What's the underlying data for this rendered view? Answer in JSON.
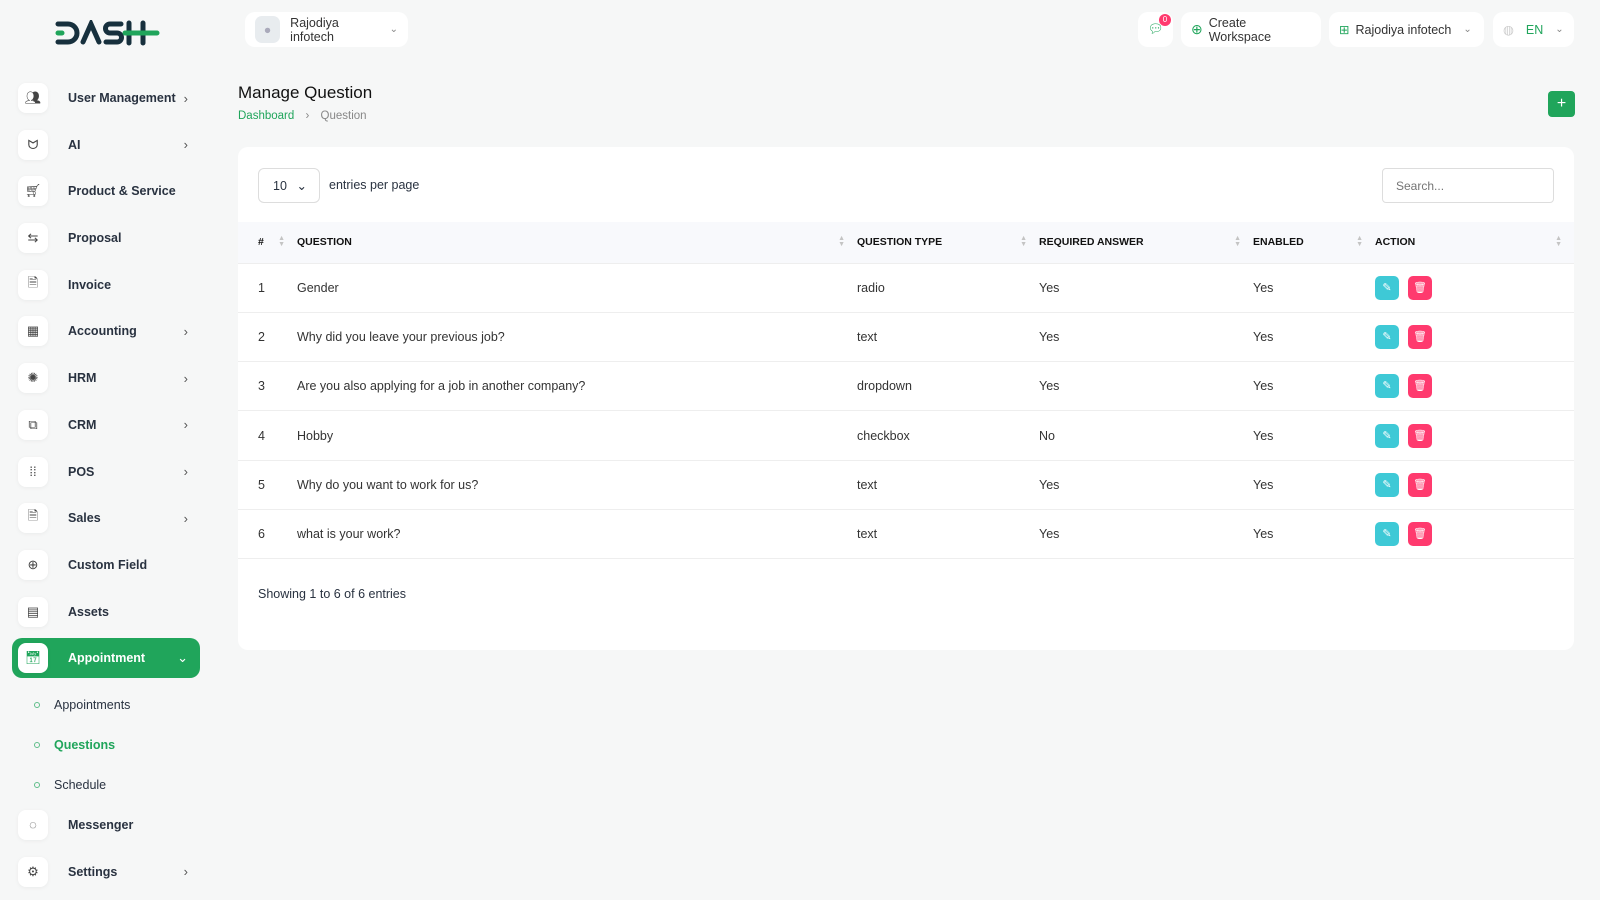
{
  "brand": {
    "logo": "DASH",
    "accent": "#20a55b"
  },
  "topbar": {
    "user_label": "Rajodiya infotech",
    "notification_count": "0",
    "create_workspace": "Create Workspace",
    "workspace": "Rajodiya infotech",
    "language": "EN"
  },
  "sidebar": {
    "items": [
      {
        "label": "User Management",
        "icon": "users-icon",
        "chevron": true
      },
      {
        "label": "AI",
        "icon": "ai-icon",
        "chevron": true
      },
      {
        "label": "Product & Service",
        "icon": "cart-icon",
        "chevron": false
      },
      {
        "label": "Proposal",
        "icon": "proposal-icon",
        "chevron": false
      },
      {
        "label": "Invoice",
        "icon": "file-icon",
        "chevron": false
      },
      {
        "label": "Accounting",
        "icon": "grid-icon",
        "chevron": true
      },
      {
        "label": "HRM",
        "icon": "hrm-icon",
        "chevron": true
      },
      {
        "label": "CRM",
        "icon": "crm-icon",
        "chevron": true
      },
      {
        "label": "POS",
        "icon": "dots-grid-icon",
        "chevron": true
      },
      {
        "label": "Sales",
        "icon": "file-icon",
        "chevron": true
      },
      {
        "label": "Custom Field",
        "icon": "plus-circle-icon",
        "chevron": false
      },
      {
        "label": "Assets",
        "icon": "calculator-icon",
        "chevron": false
      },
      {
        "label": "Appointment",
        "icon": "calendar-icon",
        "chevron": true,
        "active": true
      }
    ],
    "subitems": [
      {
        "label": "Appointments"
      },
      {
        "label": "Questions",
        "active": true
      },
      {
        "label": "Schedule"
      }
    ],
    "bottom": [
      {
        "label": "Messenger",
        "icon": "chat-icon",
        "chevron": false
      },
      {
        "label": "Settings",
        "icon": "gear-icon",
        "chevron": true
      }
    ]
  },
  "page": {
    "title": "Manage Question",
    "breadcrumb": [
      "Dashboard",
      "Question"
    ]
  },
  "table": {
    "per_page": "10",
    "per_page_label": "entries per page",
    "search_placeholder": "Search...",
    "columns": [
      "#",
      "QUESTION",
      "QUESTION TYPE",
      "REQUIRED ANSWER",
      "ENABLED",
      "ACTION"
    ],
    "rows": [
      [
        "1",
        "Gender",
        "radio",
        "Yes",
        "Yes"
      ],
      [
        "2",
        "Why did you leave your previous job?",
        "text",
        "Yes",
        "Yes"
      ],
      [
        "3",
        "Are you also applying for a job in another company?",
        "dropdown",
        "Yes",
        "Yes"
      ],
      [
        "4",
        "Hobby",
        "checkbox",
        "No",
        "Yes"
      ],
      [
        "5",
        "Why do you want to work for us?",
        "text",
        "Yes",
        "Yes"
      ],
      [
        "6",
        "what is your work?",
        "text",
        "Yes",
        "Yes"
      ]
    ],
    "footer": "Showing 1 to 6 of 6 entries"
  }
}
